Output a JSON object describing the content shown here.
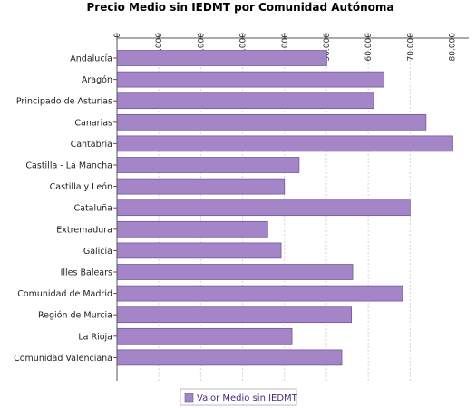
{
  "chart_data": {
    "type": "bar",
    "orientation": "horizontal",
    "title": "Precio Medio sin IEDMT por Comunidad Autónoma",
    "categories": [
      "Andalucía",
      "Aragón",
      "Principado de Asturias",
      "Canarias",
      "Cantabria",
      "Castilla - La Mancha",
      "Castilla y León",
      "Cataluña",
      "Extremadura",
      "Galicia",
      "Illes Balears",
      "Comunidad de Madrid",
      "Región de Murcia",
      "La Rioja",
      "Comunidad Valenciana"
    ],
    "series": [
      {
        "name": "Valor Medio sin IEDMT",
        "color": "#a486c8",
        "values": [
          50100,
          63800,
          61300,
          73800,
          80200,
          43500,
          40000,
          70000,
          36000,
          39200,
          56300,
          68200,
          56000,
          41800,
          53700
        ]
      }
    ],
    "xlim": [
      0,
      84000
    ],
    "xticks": [
      0,
      10000,
      20000,
      30000,
      40000,
      50000,
      60000,
      70000,
      80000
    ],
    "xtick_labels": [
      "0",
      "10.000",
      "20.000",
      "30.000",
      "40.000",
      "50.000",
      "60.000",
      "70.000",
      "80.000"
    ],
    "x_axis_position": "top",
    "grid": true,
    "legend_position": "bottom"
  }
}
